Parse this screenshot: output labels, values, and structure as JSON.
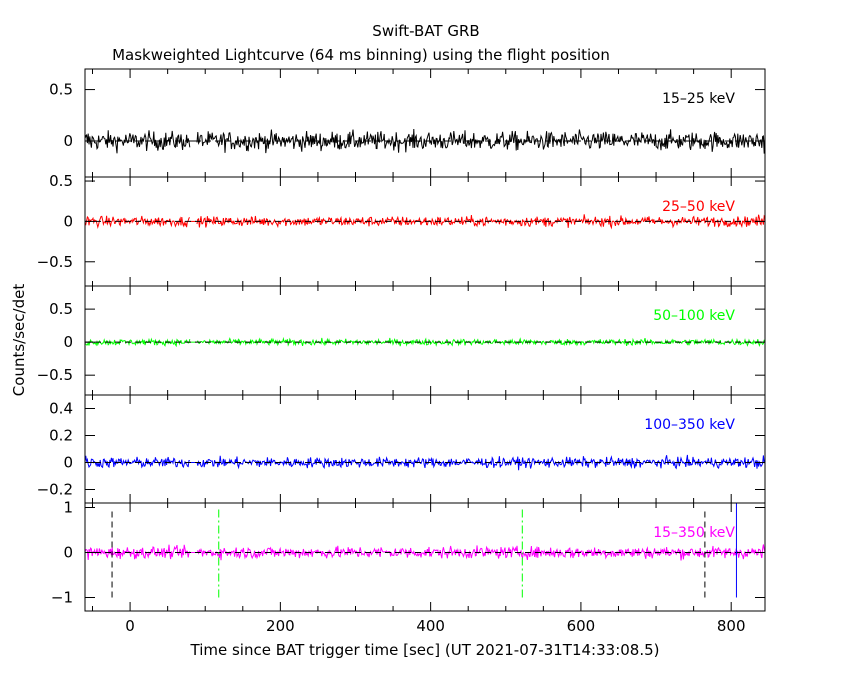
{
  "title": "Swift-BAT GRB",
  "subtitle": "Maskweighted Lightcurve (64 ms binning) using the flight position",
  "ylabel": "Counts/sec/det",
  "xlabel": "Time since BAT trigger time [sec] (UT 2021-07-31T14:33:08.5)",
  "chart_data": {
    "type": "line",
    "x_range": [
      -60,
      845
    ],
    "x_ticks": [
      0,
      200,
      400,
      600,
      800
    ],
    "x_tick_labels": [
      "0",
      "200",
      "400",
      "600",
      "800"
    ],
    "gap": [
      80,
      88
    ],
    "panels": [
      {
        "name": "15–25 keV",
        "label": "15–25 keV",
        "color": "#000000",
        "ylim": [
          -0.35,
          0.7
        ],
        "y_ticks": [
          0,
          0.5
        ],
        "y_tick_labels": [
          "0",
          "0.5"
        ],
        "noise_amplitude": 0.12,
        "zero_line": true,
        "vlines": []
      },
      {
        "name": "25–50 keV",
        "label": "25–50 keV",
        "color": "#ff0000",
        "ylim": [
          -0.8,
          0.55
        ],
        "y_ticks": [
          -0.5,
          0,
          0.5
        ],
        "y_tick_labels": [
          "−0.5",
          "0",
          "0.5"
        ],
        "noise_amplitude": 0.08,
        "zero_line": true,
        "vlines": []
      },
      {
        "name": "50–100 keV",
        "label": "50–100 keV",
        "color": "#00ff00",
        "ylim": [
          -0.8,
          0.85
        ],
        "y_ticks": [
          -0.5,
          0,
          0.5
        ],
        "y_tick_labels": [
          "−0.5",
          "0",
          "0.5"
        ],
        "noise_amplitude": 0.06,
        "zero_line": true,
        "vlines": []
      },
      {
        "name": "100–350 keV",
        "label": "100–350 keV",
        "color": "#0000ff",
        "ylim": [
          -0.3,
          0.5
        ],
        "y_ticks": [
          -0.2,
          0,
          0.2,
          0.4
        ],
        "y_tick_labels": [
          "−0.2",
          "0",
          "0.2",
          "0.4"
        ],
        "noise_amplitude": 0.05,
        "zero_line": true,
        "vlines": []
      },
      {
        "name": "15–350 keV",
        "label": "15–350 keV",
        "color": "#ff00ff",
        "ylim": [
          -1.3,
          1.1
        ],
        "y_ticks": [
          -1,
          0,
          1
        ],
        "y_tick_labels": [
          "−1",
          "0",
          "1"
        ],
        "noise_amplitude": 0.17,
        "zero_line": true,
        "vlines": [
          {
            "x": -24,
            "style": "dashed",
            "color": "#000000",
            "y0": -1.0,
            "y1": 1.0
          },
          {
            "x": 118,
            "style": "dashdot",
            "color": "#00ff00",
            "y0": -1.0,
            "y1": 1.0
          },
          {
            "x": 522,
            "style": "dashdot",
            "color": "#00ff00",
            "y0": -1.0,
            "y1": 1.0
          },
          {
            "x": 765,
            "style": "dashed",
            "color": "#000000",
            "y0": -1.0,
            "y1": 1.0
          },
          {
            "x": 807,
            "style": "solid",
            "color": "#0000ff",
            "y0": -1.0,
            "y1": 1.1
          }
        ]
      }
    ]
  }
}
